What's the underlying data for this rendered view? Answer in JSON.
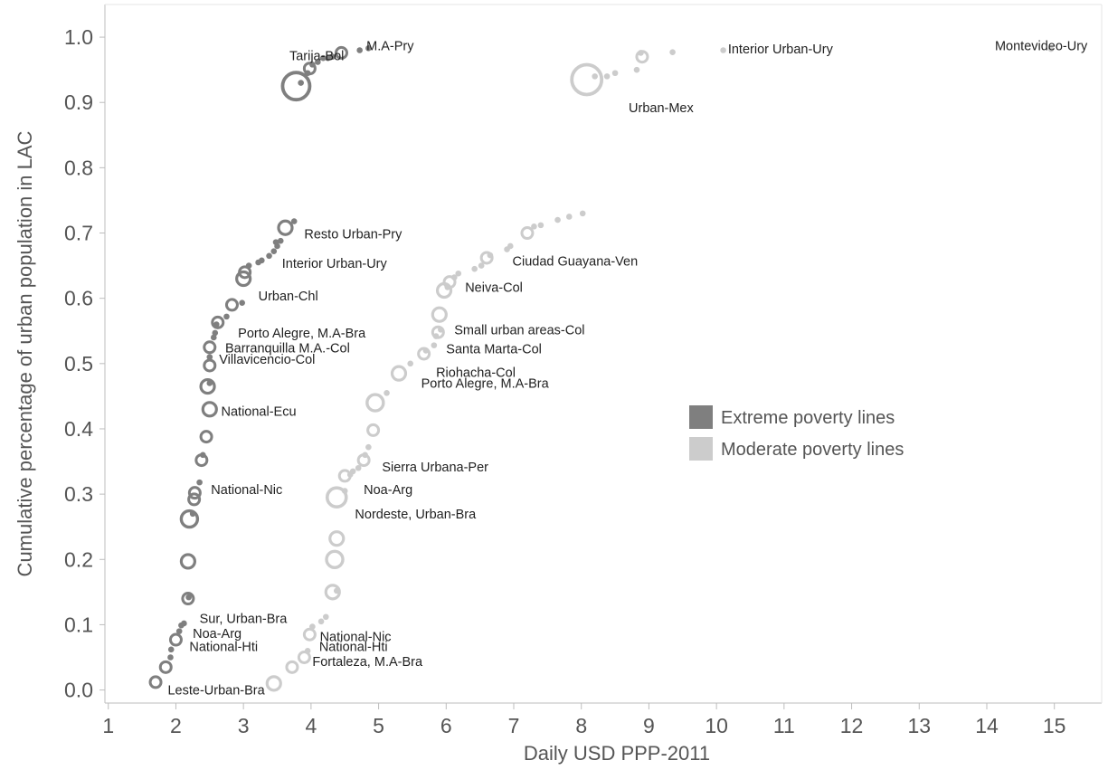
{
  "chart_data": {
    "type": "scatter",
    "xlabel": "Daily USD PPP-2011",
    "ylabel": "Cumulative percentage of urban population in LAC",
    "xlim": [
      0.95,
      15.7
    ],
    "ylim": [
      -0.02,
      1.05
    ],
    "x_ticks": [
      "1",
      "2",
      "3",
      "4",
      "5",
      "6",
      "7",
      "8",
      "9",
      "10",
      "11",
      "12",
      "13",
      "14",
      "15"
    ],
    "y_ticks": [
      "0.0",
      "0.1",
      "0.2",
      "0.3",
      "0.4",
      "0.5",
      "0.6",
      "0.7",
      "0.8",
      "0.9",
      "1.0"
    ],
    "grid": false,
    "legend_position": "right-center",
    "colors": {
      "extreme": "#7f7f7f",
      "moderate": "#cccccc"
    },
    "legend": [
      {
        "name": "Extreme poverty lines",
        "series": "extreme"
      },
      {
        "name": "Moderate poverty lines",
        "series": "moderate"
      }
    ],
    "series": [
      {
        "name": "Extreme poverty lines",
        "key": "extreme",
        "points": [
          [
            1.7,
            0.012,
            2
          ],
          [
            1.85,
            0.035,
            2
          ],
          [
            1.92,
            0.05,
            1
          ],
          [
            1.93,
            0.062,
            1
          ],
          [
            2.0,
            0.077,
            2
          ],
          [
            2.05,
            0.09,
            1
          ],
          [
            2.08,
            0.099,
            1
          ],
          [
            2.12,
            0.102,
            1
          ],
          [
            2.18,
            0.14,
            2
          ],
          [
            2.19,
            0.142,
            1
          ],
          [
            2.18,
            0.197,
            3
          ],
          [
            2.2,
            0.262,
            4
          ],
          [
            2.25,
            0.27,
            1
          ],
          [
            2.27,
            0.292,
            2
          ],
          [
            2.28,
            0.302,
            2
          ],
          [
            2.35,
            0.318,
            1
          ],
          [
            2.38,
            0.352,
            2
          ],
          [
            2.4,
            0.36,
            1
          ],
          [
            2.45,
            0.388,
            2
          ],
          [
            2.5,
            0.43,
            3
          ],
          [
            2.47,
            0.465,
            3
          ],
          [
            2.5,
            0.47,
            1
          ],
          [
            2.5,
            0.497,
            2
          ],
          [
            2.5,
            0.51,
            1
          ],
          [
            2.5,
            0.525,
            2
          ],
          [
            2.56,
            0.54,
            1
          ],
          [
            2.58,
            0.547,
            1
          ],
          [
            2.6,
            0.56,
            1
          ],
          [
            2.62,
            0.563,
            2
          ],
          [
            2.75,
            0.572,
            1
          ],
          [
            2.83,
            0.59,
            2
          ],
          [
            2.98,
            0.593,
            1
          ],
          [
            3.0,
            0.63,
            3
          ],
          [
            3.02,
            0.64,
            2
          ],
          [
            3.08,
            0.65,
            1
          ],
          [
            3.22,
            0.655,
            1
          ],
          [
            3.27,
            0.658,
            1
          ],
          [
            3.38,
            0.665,
            1
          ],
          [
            3.45,
            0.672,
            1
          ],
          [
            3.5,
            0.68,
            1
          ],
          [
            3.48,
            0.686,
            1
          ],
          [
            3.55,
            0.688,
            1
          ],
          [
            3.62,
            0.708,
            3
          ],
          [
            3.75,
            0.718,
            1
          ],
          [
            3.78,
            0.925,
            6
          ],
          [
            3.85,
            0.93,
            1
          ],
          [
            3.95,
            0.945,
            1
          ],
          [
            3.98,
            0.952,
            2
          ],
          [
            4.02,
            0.958,
            1
          ],
          [
            4.1,
            0.962,
            1
          ],
          [
            4.18,
            0.968,
            1
          ],
          [
            4.25,
            0.968,
            1
          ],
          [
            4.32,
            0.97,
            1
          ],
          [
            4.45,
            0.976,
            2
          ],
          [
            4.72,
            0.98,
            1
          ],
          [
            4.85,
            0.983,
            1
          ]
        ]
      },
      {
        "name": "Moderate poverty lines",
        "key": "moderate",
        "points": [
          [
            3.45,
            0.01,
            3
          ],
          [
            3.72,
            0.035,
            2
          ],
          [
            3.9,
            0.05,
            2
          ],
          [
            3.95,
            0.06,
            1
          ],
          [
            3.98,
            0.085,
            2
          ],
          [
            4.02,
            0.097,
            1
          ],
          [
            4.15,
            0.105,
            1
          ],
          [
            4.22,
            0.112,
            1
          ],
          [
            4.32,
            0.15,
            3
          ],
          [
            4.38,
            0.152,
            1
          ],
          [
            4.35,
            0.2,
            4
          ],
          [
            4.38,
            0.232,
            3
          ],
          [
            4.38,
            0.295,
            5
          ],
          [
            4.5,
            0.305,
            1
          ],
          [
            4.5,
            0.328,
            2
          ],
          [
            4.58,
            0.33,
            1
          ],
          [
            4.62,
            0.335,
            1
          ],
          [
            4.7,
            0.34,
            1
          ],
          [
            4.78,
            0.352,
            2
          ],
          [
            4.8,
            0.36,
            1
          ],
          [
            4.85,
            0.372,
            1
          ],
          [
            4.92,
            0.398,
            2
          ],
          [
            4.95,
            0.44,
            4
          ],
          [
            5.12,
            0.455,
            1
          ],
          [
            5.3,
            0.485,
            3
          ],
          [
            5.47,
            0.5,
            1
          ],
          [
            5.67,
            0.515,
            2
          ],
          [
            5.7,
            0.52,
            1
          ],
          [
            5.82,
            0.528,
            1
          ],
          [
            5.85,
            0.542,
            1
          ],
          [
            5.88,
            0.548,
            2
          ],
          [
            5.92,
            0.552,
            1
          ],
          [
            5.9,
            0.575,
            3
          ],
          [
            5.97,
            0.612,
            3
          ],
          [
            6.02,
            0.617,
            1
          ],
          [
            6.05,
            0.625,
            2
          ],
          [
            6.12,
            0.632,
            1
          ],
          [
            6.18,
            0.638,
            1
          ],
          [
            6.42,
            0.645,
            1
          ],
          [
            6.52,
            0.65,
            1
          ],
          [
            6.6,
            0.662,
            2
          ],
          [
            6.65,
            0.666,
            1
          ],
          [
            6.9,
            0.675,
            1
          ],
          [
            6.95,
            0.68,
            1
          ],
          [
            7.2,
            0.7,
            2
          ],
          [
            7.3,
            0.71,
            1
          ],
          [
            7.4,
            0.712,
            1
          ],
          [
            7.65,
            0.72,
            1
          ],
          [
            7.82,
            0.725,
            1
          ],
          [
            8.02,
            0.73,
            1
          ],
          [
            8.08,
            0.935,
            7
          ],
          [
            8.2,
            0.94,
            1
          ],
          [
            8.38,
            0.94,
            1
          ],
          [
            8.5,
            0.945,
            1
          ],
          [
            8.82,
            0.95,
            1
          ],
          [
            8.9,
            0.97,
            2
          ],
          [
            8.88,
            0.976,
            1
          ],
          [
            9.35,
            0.977,
            1
          ],
          [
            10.1,
            0.98,
            1
          ],
          [
            14.95,
            0.982,
            1
          ]
        ]
      }
    ],
    "annotations": [
      {
        "text": "M.A-Pry",
        "x": 4.82,
        "y": 0.98
      },
      {
        "text": "Tarija-Bol",
        "x": 3.68,
        "y": 0.965
      },
      {
        "text": "Interior Urban-Ury",
        "x": 10.17,
        "y": 0.975
      },
      {
        "text": "Montevideo-Ury",
        "x": 14.12,
        "y": 0.98
      },
      {
        "text": "Urban-Mex",
        "x": 8.7,
        "y": 0.885
      },
      {
        "text": "Resto Urban-Pry",
        "x": 3.9,
        "y": 0.692
      },
      {
        "text": "Interior Urban-Ury",
        "x": 3.57,
        "y": 0.647
      },
      {
        "text": "Ciudad Guayana-Ven",
        "x": 6.98,
        "y": 0.65
      },
      {
        "text": "Neiva-Col",
        "x": 6.28,
        "y": 0.61
      },
      {
        "text": "Urban-Chl",
        "x": 3.22,
        "y": 0.597
      },
      {
        "text": "Small urban areas-Col",
        "x": 6.12,
        "y": 0.545
      },
      {
        "text": "Porto Alegre, M.A-Bra",
        "x": 2.92,
        "y": 0.54
      },
      {
        "text": "Santa Marta-Col",
        "x": 6.0,
        "y": 0.516
      },
      {
        "text": "Barranquilla M.A.-Col",
        "x": 2.73,
        "y": 0.517
      },
      {
        "text": "Villavicencio-Col",
        "x": 2.64,
        "y": 0.5
      },
      {
        "text": "Riohacha-Col",
        "x": 5.85,
        "y": 0.48
      },
      {
        "text": "Porto Alegre, M.A-Bra",
        "x": 5.63,
        "y": 0.463
      },
      {
        "text": "National-Ecu",
        "x": 2.67,
        "y": 0.42
      },
      {
        "text": "Sierra Urbana-Per",
        "x": 5.05,
        "y": 0.335
      },
      {
        "text": "Noa-Arg",
        "x": 4.78,
        "y": 0.3
      },
      {
        "text": "National-Nic",
        "x": 2.52,
        "y": 0.3
      },
      {
        "text": "Nordeste, Urban-Bra",
        "x": 4.65,
        "y": 0.263
      },
      {
        "text": "Sur, Urban-Bra",
        "x": 2.35,
        "y": 0.103
      },
      {
        "text": "Noa-Arg",
        "x": 2.25,
        "y": 0.08
      },
      {
        "text": "National-Nic",
        "x": 4.13,
        "y": 0.075
      },
      {
        "text": "National-Hti",
        "x": 2.2,
        "y": 0.06
      },
      {
        "text": "National-Hti",
        "x": 4.12,
        "y": 0.06
      },
      {
        "text": "Fortaleza, M.A-Bra",
        "x": 4.02,
        "y": 0.037
      },
      {
        "text": "Leste-Urban-Bra",
        "x": 1.88,
        "y": -0.007
      }
    ]
  }
}
